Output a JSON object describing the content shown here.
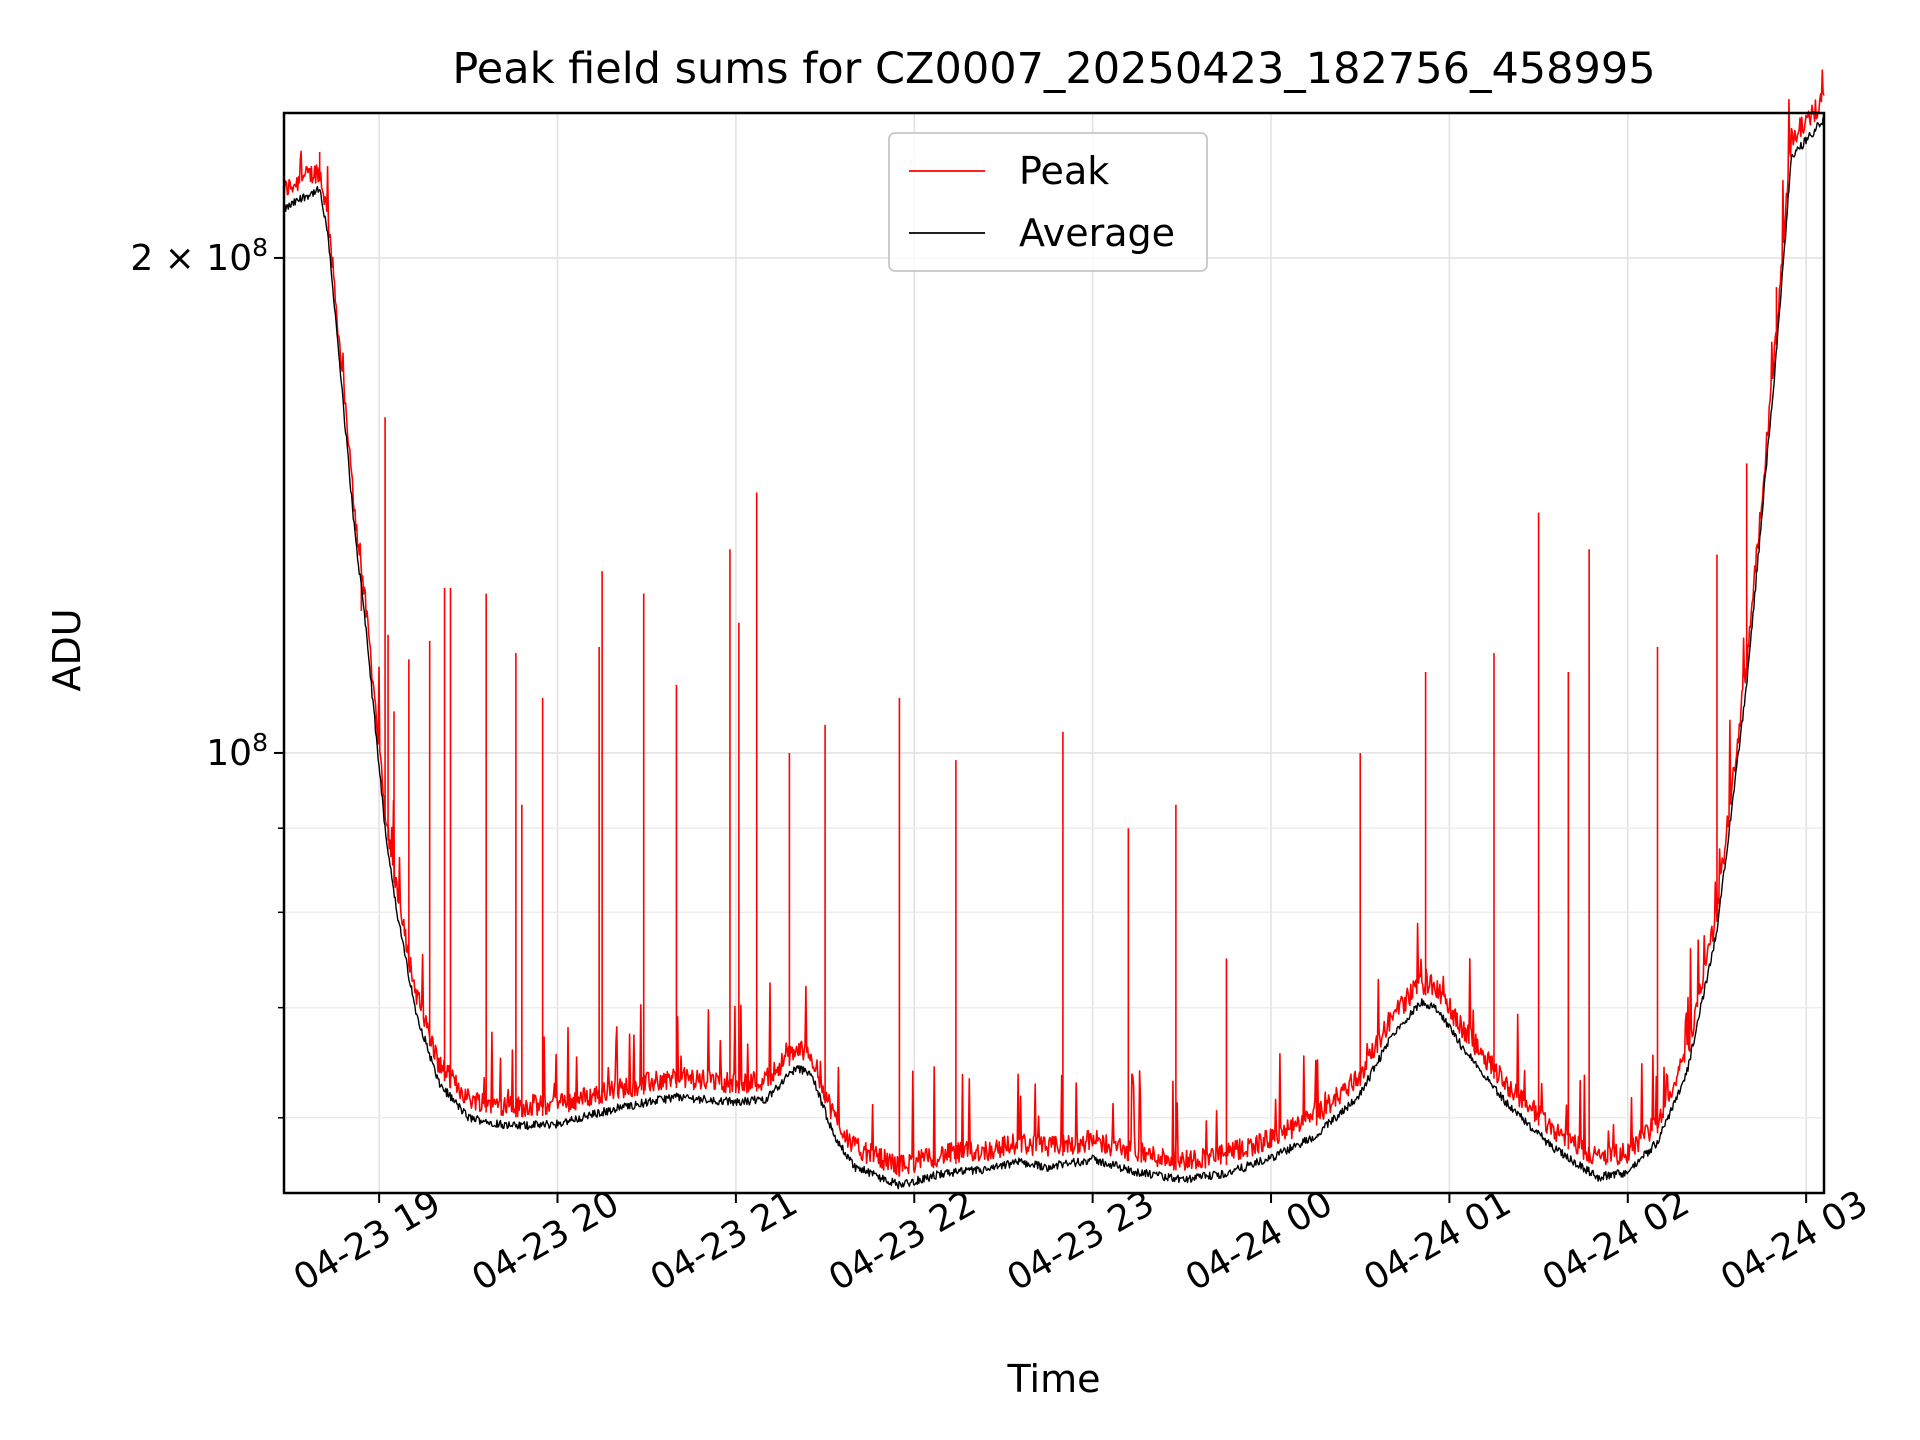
{
  "chart_data": {
    "type": "line",
    "title": "Peak field sums for CZ0007_20250423_182756_458995",
    "xlabel": "Time",
    "ylabel": "ADU",
    "y_scale": "log",
    "x_range": [
      "2025-04-23 18:28",
      "2025-04-24 03:06"
    ],
    "ylim": [
      54000000,
      245000000
    ],
    "x_ticks": [
      {
        "t": "2025-04-23 19:00",
        "label": "04-23 19"
      },
      {
        "t": "2025-04-23 20:00",
        "label": "04-23 20"
      },
      {
        "t": "2025-04-23 21:00",
        "label": "04-23 21"
      },
      {
        "t": "2025-04-23 22:00",
        "label": "04-23 22"
      },
      {
        "t": "2025-04-23 23:00",
        "label": "04-23 23"
      },
      {
        "t": "2025-04-24 00:00",
        "label": "04-24 00"
      },
      {
        "t": "2025-04-24 01:00",
        "label": "04-24 01"
      },
      {
        "t": "2025-04-24 02:00",
        "label": "04-24 02"
      },
      {
        "t": "2025-04-24 03:00",
        "label": "04-24 03"
      }
    ],
    "y_major_ticks": [
      {
        "value": 100000000,
        "mantissa": "",
        "exponent": "8"
      },
      {
        "value": 200000000,
        "mantissa": "2 × ",
        "exponent": "8"
      }
    ],
    "y_minor_ticks": [
      60000000,
      70000000,
      80000000,
      90000000
    ],
    "grid": true,
    "legend_position": "top-center",
    "series": [
      {
        "name": "Average",
        "color": "#000000",
        "points": [
          [
            "2025-04-23 18:28",
            214000000
          ],
          [
            "2025-04-23 18:35",
            218000000
          ],
          [
            "2025-04-23 18:40",
            220000000
          ],
          [
            "2025-04-23 18:43",
            205000000
          ],
          [
            "2025-04-23 18:47",
            170000000
          ],
          [
            "2025-04-23 18:52",
            135000000
          ],
          [
            "2025-04-23 18:55",
            122000000
          ],
          [
            "2025-04-23 18:58",
            107000000
          ],
          [
            "2025-04-23 19:02",
            90000000
          ],
          [
            "2025-04-23 19:06",
            80000000
          ],
          [
            "2025-04-23 19:12",
            70000000
          ],
          [
            "2025-04-23 19:20",
            63000000
          ],
          [
            "2025-04-23 19:30",
            60000000
          ],
          [
            "2025-04-23 19:45",
            59300000
          ],
          [
            "2025-04-23 20:00",
            59500000
          ],
          [
            "2025-04-23 20:20",
            60800000
          ],
          [
            "2025-04-23 20:40",
            61800000
          ],
          [
            "2025-04-23 21:00",
            61300000
          ],
          [
            "2025-04-23 21:10",
            61600000
          ],
          [
            "2025-04-23 21:20",
            64300000
          ],
          [
            "2025-04-23 21:25",
            64000000
          ],
          [
            "2025-04-23 21:33",
            58500000
          ],
          [
            "2025-04-23 21:40",
            56000000
          ],
          [
            "2025-04-23 21:55",
            54600000
          ],
          [
            "2025-04-23 22:10",
            55500000
          ],
          [
            "2025-04-23 22:25",
            55800000
          ],
          [
            "2025-04-23 22:35",
            56400000
          ],
          [
            "2025-04-23 22:45",
            56000000
          ],
          [
            "2025-04-23 23:00",
            56600000
          ],
          [
            "2025-04-23 23:15",
            55600000
          ],
          [
            "2025-04-23 23:30",
            55000000
          ],
          [
            "2025-04-23 23:45",
            55500000
          ],
          [
            "2025-04-24 00:00",
            56700000
          ],
          [
            "2025-04-24 00:15",
            58500000
          ],
          [
            "2025-04-24 00:30",
            62000000
          ],
          [
            "2025-04-24 00:40",
            67000000
          ],
          [
            "2025-04-24 00:50",
            70500000
          ],
          [
            "2025-04-24 00:55",
            70200000
          ],
          [
            "2025-04-24 01:05",
            66000000
          ],
          [
            "2025-04-24 01:20",
            61000000
          ],
          [
            "2025-04-24 01:35",
            57500000
          ],
          [
            "2025-04-24 01:50",
            55200000
          ],
          [
            "2025-04-24 02:00",
            55600000
          ],
          [
            "2025-04-24 02:10",
            58000000
          ],
          [
            "2025-04-24 02:20",
            64000000
          ],
          [
            "2025-04-24 02:30",
            78000000
          ],
          [
            "2025-04-24 02:40",
            110000000
          ],
          [
            "2025-04-24 02:50",
            175000000
          ],
          [
            "2025-04-24 02:55",
            230000000
          ],
          [
            "2025-04-24 03:06",
            243000000
          ]
        ]
      },
      {
        "name": "Peak",
        "color": "#ff0000",
        "offset": 0.012,
        "spikes": [
          [
            "2025-04-23 18:40",
            232000000
          ],
          [
            "2025-04-23 18:43",
            210000000
          ],
          [
            "2025-04-23 18:54",
            122000000
          ],
          [
            "2025-04-23 19:02",
            160000000
          ],
          [
            "2025-04-23 19:03",
            118000000
          ],
          [
            "2025-04-23 19:05",
            106000000
          ],
          [
            "2025-04-23 19:10",
            114000000
          ],
          [
            "2025-04-23 19:17",
            117000000
          ],
          [
            "2025-04-23 19:22",
            126000000
          ],
          [
            "2025-04-23 19:24",
            126000000
          ],
          [
            "2025-04-23 19:36",
            125000000
          ],
          [
            "2025-04-23 19:46",
            115000000
          ],
          [
            "2025-04-23 19:48",
            93000000
          ],
          [
            "2025-04-23 19:55",
            108000000
          ],
          [
            "2025-04-23 20:14",
            116000000
          ],
          [
            "2025-04-23 20:15",
            129000000
          ],
          [
            "2025-04-23 20:29",
            125000000
          ],
          [
            "2025-04-23 20:40",
            110000000
          ],
          [
            "2025-04-23 20:58",
            133000000
          ],
          [
            "2025-04-23 21:01",
            120000000
          ],
          [
            "2025-04-23 21:07",
            144000000
          ],
          [
            "2025-04-23 21:18",
            100000000
          ],
          [
            "2025-04-23 21:30",
            104000000
          ],
          [
            "2025-04-23 21:55",
            108000000
          ],
          [
            "2025-04-23 22:14",
            99000000
          ],
          [
            "2025-04-23 22:50",
            103000000
          ],
          [
            "2025-04-23 23:12",
            90000000
          ],
          [
            "2025-04-23 23:28",
            93000000
          ],
          [
            "2025-04-23 23:45",
            75000000
          ],
          [
            "2025-04-24 00:30",
            100000000
          ],
          [
            "2025-04-24 00:52",
            112000000
          ],
          [
            "2025-04-24 01:15",
            115000000
          ],
          [
            "2025-04-24 01:30",
            140000000
          ],
          [
            "2025-04-24 01:40",
            112000000
          ],
          [
            "2025-04-24 01:47",
            133000000
          ],
          [
            "2025-04-24 02:10",
            116000000
          ],
          [
            "2025-04-24 02:30",
            132000000
          ],
          [
            "2025-04-24 02:40",
            150000000
          ],
          [
            "2025-04-24 02:50",
            192000000
          ]
        ]
      }
    ]
  }
}
